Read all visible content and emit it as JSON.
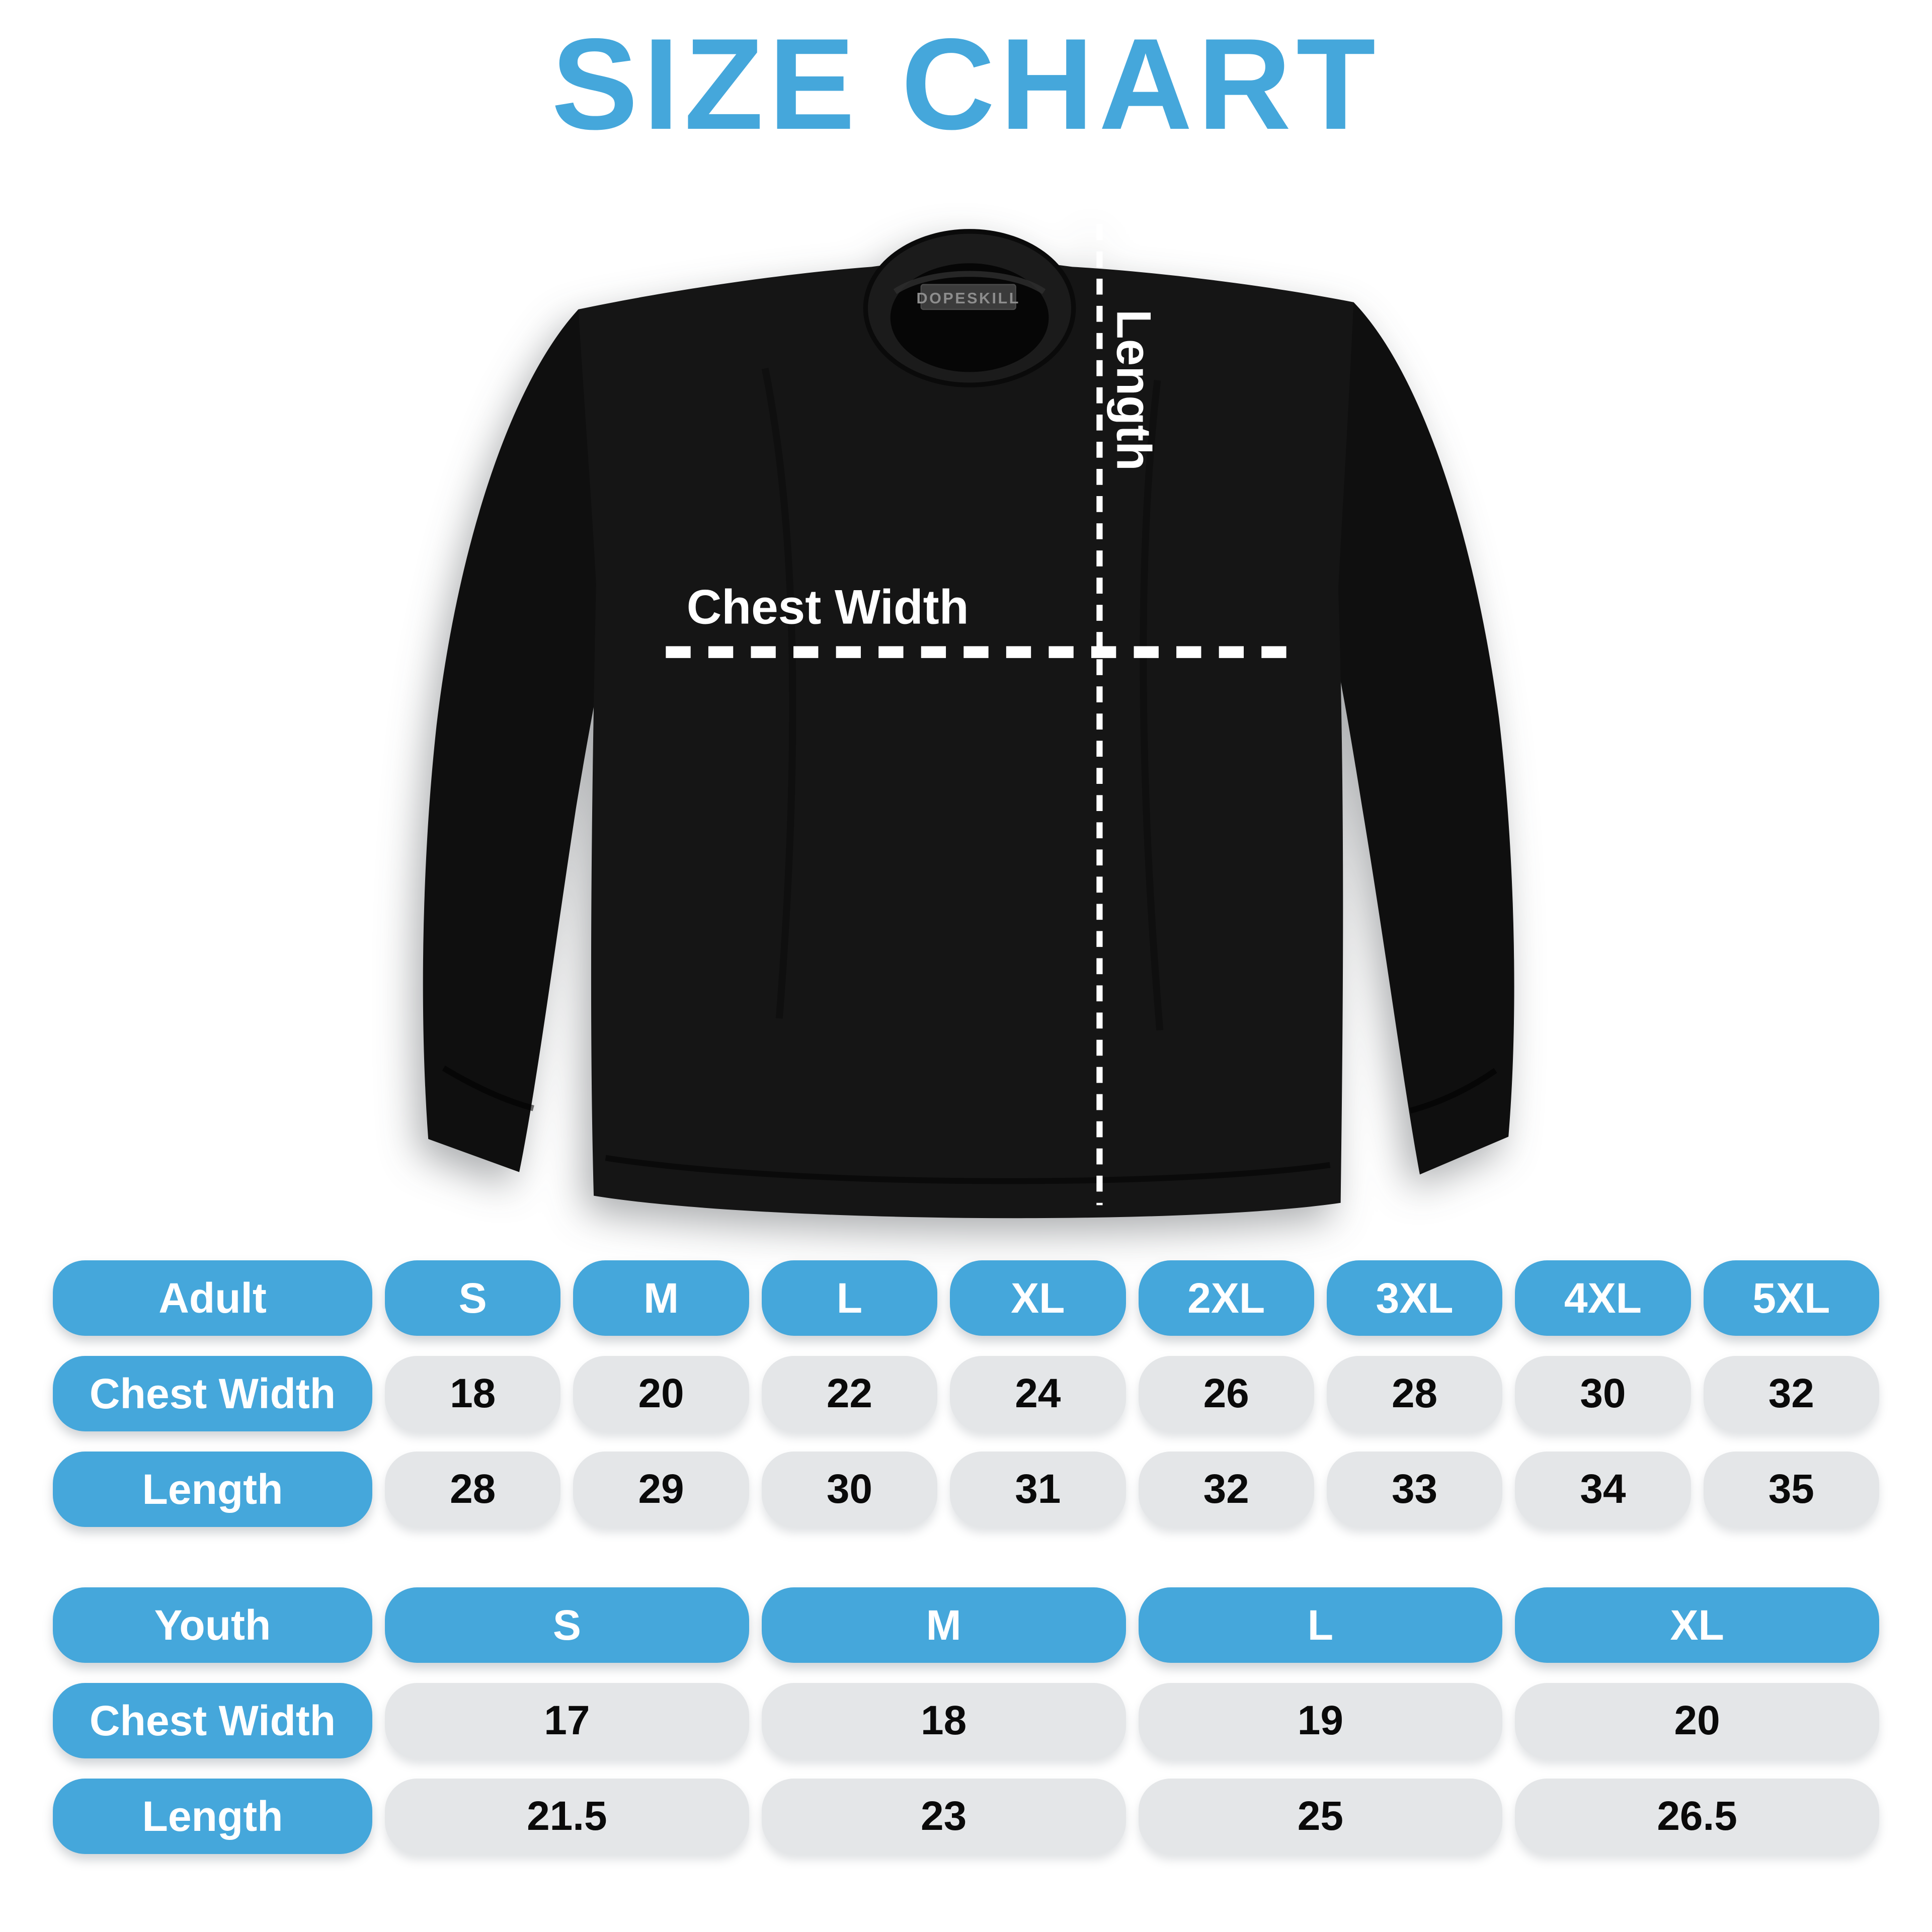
{
  "title": "SIZE CHART",
  "colors": {
    "accent_blue": "#45A7DB",
    "value_pill_gray": "#E4E6E8",
    "pill_text_white": "#FFFFFF",
    "value_text_black": "#0A0A0A",
    "shirt_black": "#141414",
    "background": "#FFFFFF"
  },
  "diagram": {
    "tag_label": "DOPESKILL",
    "chest_width_label": "Chest Width",
    "length_label": "Length"
  },
  "chart_data": [
    {
      "type": "table",
      "name": "adult-size-table",
      "header_label": "Adult",
      "columns": [
        "S",
        "M",
        "L",
        "XL",
        "2XL",
        "3XL",
        "4XL",
        "5XL"
      ],
      "rows": [
        {
          "label": "Chest Width",
          "values": [
            "18",
            "20",
            "22",
            "24",
            "26",
            "28",
            "30",
            "32"
          ]
        },
        {
          "label": "Length",
          "values": [
            "28",
            "29",
            "30",
            "31",
            "32",
            "33",
            "34",
            "35"
          ]
        }
      ]
    },
    {
      "type": "table",
      "name": "youth-size-table",
      "header_label": "Youth",
      "columns": [
        "S",
        "M",
        "L",
        "XL"
      ],
      "rows": [
        {
          "label": "Chest Width",
          "values": [
            "17",
            "18",
            "19",
            "20"
          ]
        },
        {
          "label": "Length",
          "values": [
            "21.5",
            "23",
            "25",
            "26.5"
          ]
        }
      ]
    }
  ]
}
